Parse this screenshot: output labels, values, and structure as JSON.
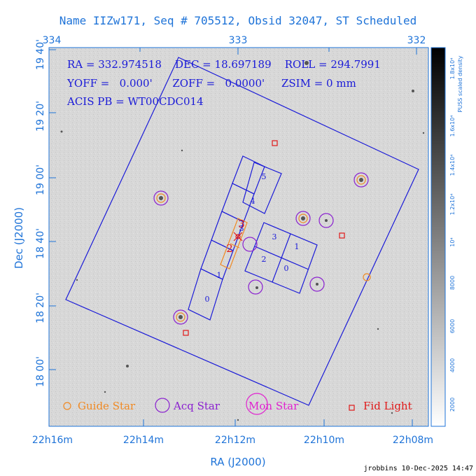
{
  "title": "Name IIZw171, Seq # 705512, Obsid 32047, ST Scheduled",
  "info": {
    "line1": "RA = 332.974518    DEC = 18.697189    ROLL = 294.7991",
    "line2": "YOFF =   0.000'      ZOFF =   0.0000'     ZSIM = 0 mm",
    "line3": "ACIS PB = WT00CDC014"
  },
  "axes": {
    "top_ticks": [
      "334",
      "333",
      "332"
    ],
    "left_ticks": [
      "19 40'",
      "19 20'",
      "19 00'",
      "18 40'",
      "18 20'",
      "18 00'"
    ],
    "bottom_ticks": [
      "22h16m",
      "22h14m",
      "22h12m",
      "22h10m",
      "22h08m"
    ],
    "x_title": "RA (J2000)",
    "y_title": "Dec (J2000)"
  },
  "colorbar": {
    "title": "PUSS scaled density",
    "ticks": [
      "2000",
      "4000",
      "6000",
      "8000",
      "10⁴",
      "1.2x10⁴",
      "1.4x10⁴",
      "1.6x10⁴",
      "1.8x10⁴"
    ]
  },
  "chips": [
    "0",
    "1",
    "2",
    "3",
    "4",
    "5",
    "0",
    "1",
    "2",
    "3"
  ],
  "hrc_labels": [
    "2",
    "3"
  ],
  "legend": {
    "guide": "Guide Star",
    "acq": "Acq Star",
    "mon": "Mon Star",
    "fid": "Fid Light"
  },
  "colors": {
    "guide": "#f08a24",
    "acq": "#8a1fd0",
    "mon": "#e020d0",
    "fid": "#e01818",
    "outline": "#1a1ad8",
    "axis": "#1e73d8"
  },
  "footer": "jrobbins 10-Dec-2025 14:47"
}
